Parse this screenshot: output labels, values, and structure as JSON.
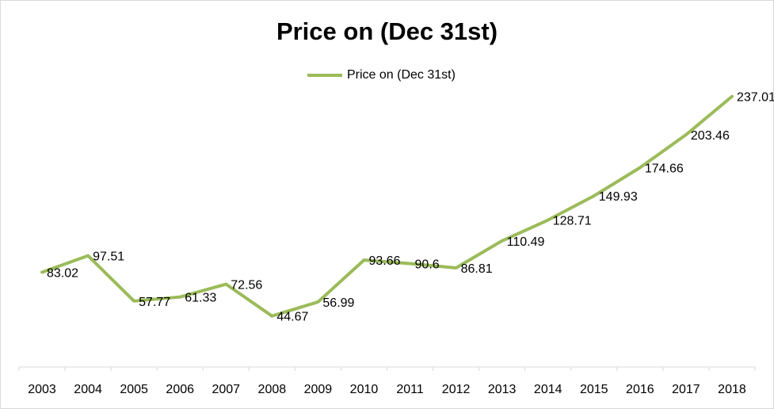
{
  "chart_data": {
    "type": "line",
    "title": "Price on (Dec 31st)",
    "xlabel": "",
    "ylabel": "",
    "categories": [
      "2003",
      "2004",
      "2005",
      "2006",
      "2007",
      "2008",
      "2009",
      "2010",
      "2011",
      "2012",
      "2013",
      "2014",
      "2015",
      "2016",
      "2017",
      "2018"
    ],
    "series": [
      {
        "name": "Price on (Dec 31st)",
        "values": [
          83.02,
          97.51,
          57.77,
          61.33,
          72.56,
          44.67,
          56.99,
          93.66,
          90.6,
          86.81,
          110.49,
          128.71,
          149.93,
          174.66,
          203.46,
          237.01
        ],
        "labels": [
          "83.02",
          "97.51",
          "57.77",
          "61.33",
          "72.56",
          "44.67",
          "56.99",
          "93.66",
          "90.6",
          "86.81",
          "110.49",
          "128.71",
          "149.93",
          "174.66",
          "203.46",
          "237.01"
        ],
        "color": "#9bbb59"
      }
    ],
    "ylim": [
      0,
      250
    ],
    "grid": false,
    "y_axis_visible": false,
    "legend_position": "top"
  }
}
